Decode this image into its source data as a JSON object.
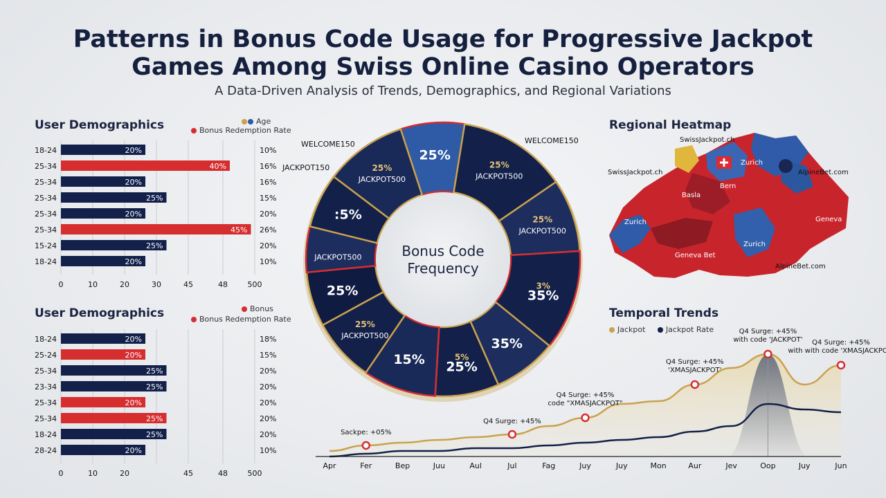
{
  "header": {
    "title_line1": "Patterns in Bonus Code Usage for Progressive Jackpot",
    "title_line2": "Games Among Swiss Online Casino Operators",
    "subtitle": "A Data-Driven Analysis of Trends, Demographics, and Regional Variations"
  },
  "colors": {
    "navy": "#12204a",
    "red": "#d62d2f",
    "gold": "#c9a24e",
    "blue": "#2e5aa6"
  },
  "demographics_top": {
    "title": "User Demographics",
    "legend": [
      "Age",
      "Bonus Redemption Rate"
    ]
  },
  "demographics_bottom": {
    "title": "User Demographics",
    "legend": [
      "Bonus",
      "Bonus Redemption Rate"
    ]
  },
  "donut": {
    "center_label_1": "Bonus Code",
    "center_label_2": "Frequency"
  },
  "heatmap": {
    "title": "Regional Heatmap",
    "labels": [
      "SwissJackpot.ch",
      "SwissJackpot.ch",
      "Zurich",
      "AlpineBet.com",
      "Bern",
      "Basla",
      "Zurich",
      "Geneva",
      "Zurich",
      "Geneva Bet",
      "AlpineBet.com"
    ]
  },
  "trends": {
    "title": "Temporal Trends",
    "legend": [
      "Jackpot",
      "Jackpot Rate"
    ]
  },
  "chart_data": [
    {
      "type": "bar",
      "title": "User Demographics",
      "categories": [
        "18-24",
        "25-34",
        "25-34",
        "25-34",
        "25-34",
        "25-34",
        "15-24",
        "18-24"
      ],
      "values": [
        20,
        40,
        20,
        25,
        20,
        45,
        25,
        20
      ],
      "value_labels": [
        "20%",
        "40%",
        "20%",
        "25%",
        "20%",
        "45%",
        "25%",
        "20%"
      ],
      "highlight": [
        false,
        true,
        false,
        false,
        false,
        true,
        false,
        false
      ],
      "right_labels": [
        "10%",
        "16%",
        "16%",
        "15%",
        "20%",
        "26%",
        "20%",
        "10%"
      ],
      "xticks": [
        "0",
        "10",
        "20",
        "30",
        "45",
        "48",
        "500"
      ],
      "series": [
        {
          "name": "Age",
          "values": [
            20,
            40,
            20,
            25,
            20,
            45,
            25,
            20
          ]
        },
        {
          "name": "Bonus Redemption Rate",
          "values": [
            20,
            40,
            20,
            25,
            20,
            45,
            25,
            20
          ]
        }
      ]
    },
    {
      "type": "bar",
      "title": "User Demographics",
      "categories": [
        "18-24",
        "25-24",
        "25-34",
        "23-34",
        "25-34",
        "25-34",
        "18-24",
        "28-24"
      ],
      "values": [
        20,
        20,
        25,
        25,
        20,
        25,
        25,
        20
      ],
      "value_labels": [
        "20%",
        "20%",
        "25%",
        "25%",
        "20%",
        "25%",
        "25%",
        "20%"
      ],
      "highlight": [
        false,
        true,
        false,
        false,
        true,
        true,
        false,
        false
      ],
      "right_labels": [
        "18%",
        "15%",
        "20%",
        "20%",
        "20%",
        "20%",
        "20%",
        "10%"
      ],
      "xticks": [
        "0",
        "10",
        "20",
        "45",
        "48",
        "500"
      ],
      "series": [
        {
          "name": "Bonus",
          "values": [
            20,
            20,
            25,
            25,
            20,
            25,
            25,
            20
          ]
        },
        {
          "name": "Bonus Redemption Rate",
          "values": [
            20,
            20,
            25,
            25,
            20,
            25,
            25,
            20
          ]
        }
      ]
    },
    {
      "type": "pie",
      "title": "Bonus Code Frequency",
      "segments": [
        {
          "pct": "25%",
          "code": "",
          "value": 7,
          "color": "#2e5aa6"
        },
        {
          "pct": "25%",
          "code": "JACKPOT500",
          "value": 12,
          "color": "#12204a"
        },
        {
          "pct": "25%",
          "code": "JACKPOT500",
          "value": 8,
          "color": "#1c2d5e"
        },
        {
          "pct": "3%",
          "code": "35%",
          "value": 11,
          "color": "#12204a"
        },
        {
          "pct": "35%",
          "code": "",
          "value": 7,
          "color": "#1c2d5e"
        },
        {
          "pct": "5%",
          "code": "25%",
          "value": 7,
          "color": "#12204a"
        },
        {
          "pct": "15%",
          "code": "",
          "value": 8,
          "color": "#1a2a58"
        },
        {
          "pct": "25%",
          "code": "JACKPOT500",
          "value": 7,
          "color": "#12204a"
        },
        {
          "pct": "25%",
          "code": "",
          "value": 6,
          "color": "#0f1b40"
        },
        {
          "pct": "",
          "code": "JACKPOT500",
          "value": 5,
          "color": "#1c2d5e"
        },
        {
          "pct": ":5%",
          "code": "",
          "value": 6,
          "color": "#12204a"
        },
        {
          "pct": "25%",
          "code": "JACKPOT500",
          "value": 9,
          "color": "#1a2a58"
        }
      ],
      "outer_labels": [
        "WELCOME150",
        "JACKPOT150",
        "WELCOME150"
      ]
    },
    {
      "type": "line",
      "title": "Temporal Trends",
      "x": [
        "Apr",
        "Fer",
        "Bep",
        "Juu",
        "Aul",
        "Jul",
        "Fag",
        "Juy",
        "Juy",
        "Mon",
        "Aur",
        "Jev",
        "Oop",
        "Juy",
        "Jun"
      ],
      "series": [
        {
          "name": "Jackpot",
          "values": [
            2,
            4,
            5,
            6,
            7,
            8,
            11,
            14,
            19,
            20,
            26,
            32,
            37,
            26,
            33
          ]
        },
        {
          "name": "Jackpot Rate",
          "values": [
            0,
            1,
            2,
            2,
            3,
            3,
            4,
            5,
            6,
            7,
            9,
            11,
            19,
            17,
            16
          ]
        }
      ],
      "annotations": [
        {
          "text": "Sackpe: +05%",
          "x": "Fer"
        },
        {
          "text": "Q4 Surge: +45%",
          "x": "Jul"
        },
        {
          "text": "Q4 Surge: +45% code \"XMASJACKPOT\"",
          "x": "Juy"
        },
        {
          "text": "Q4 Surge: +45% 'XMASJACKPOT'",
          "x": "Aur"
        },
        {
          "text": "Q4 Surge: +45% with code 'JACKPOT'",
          "x": "Oop"
        },
        {
          "text": "Q4 Surge: +45% with with code 'XMASJACKPOT'",
          "x": "Jun"
        }
      ]
    }
  ]
}
